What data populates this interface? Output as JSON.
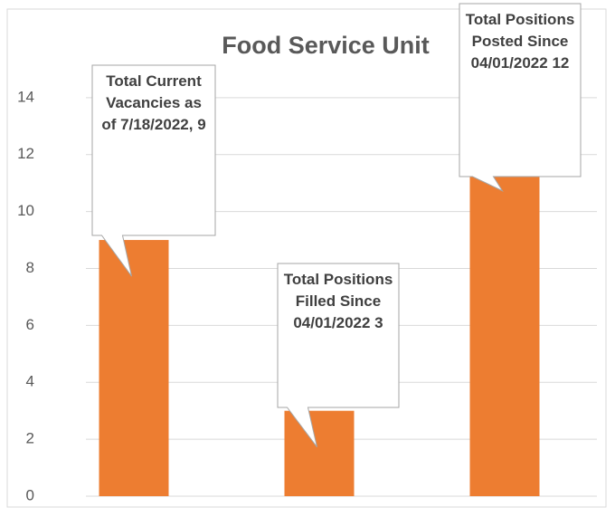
{
  "chart_data": {
    "type": "bar",
    "title": "Food Service Unit",
    "categories": [
      "Total Current Vacancies as of 7/18/2022,",
      "Total Positions Filled Since 04/01/2022",
      "Total Positions Posted Since 04/01/2022"
    ],
    "values": [
      9,
      3,
      12
    ],
    "color": "#ed7d31",
    "ylim": [
      0,
      16
    ],
    "yticks": [
      0,
      2,
      4,
      6,
      8,
      10,
      12,
      14
    ],
    "grid": true
  }
}
